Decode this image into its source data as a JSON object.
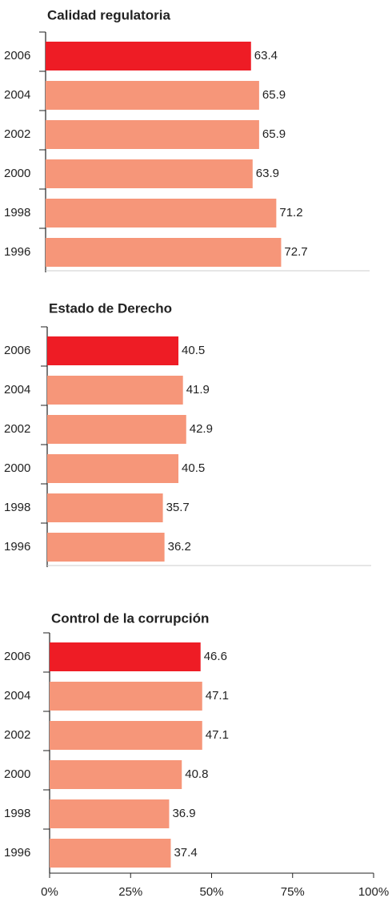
{
  "chart_data": [
    {
      "type": "bar",
      "title": "Calidad regulatoria",
      "categories": [
        "2006",
        "2004",
        "2002",
        "2000",
        "1998",
        "1996"
      ],
      "values": [
        63.4,
        65.9,
        65.9,
        63.9,
        71.2,
        72.7
      ],
      "colors": [
        "#ee1c25",
        "#f69679",
        "#f69679",
        "#f69679",
        "#f69679",
        "#f69679"
      ],
      "xlim": [
        0,
        100
      ]
    },
    {
      "type": "bar",
      "title": "Estado de Derecho",
      "categories": [
        "2006",
        "2004",
        "2002",
        "2000",
        "1998",
        "1996"
      ],
      "values": [
        40.5,
        41.9,
        42.9,
        40.5,
        35.7,
        36.2
      ],
      "colors": [
        "#ee1c25",
        "#f69679",
        "#f69679",
        "#f69679",
        "#f69679",
        "#f69679"
      ],
      "xlim": [
        0,
        100
      ]
    },
    {
      "type": "bar",
      "title": "Control de la corrupción",
      "categories": [
        "2006",
        "2004",
        "2002",
        "2000",
        "1998",
        "1996"
      ],
      "values": [
        46.6,
        47.1,
        47.1,
        40.8,
        36.9,
        37.4
      ],
      "colors": [
        "#ee1c25",
        "#f69679",
        "#f69679",
        "#f69679",
        "#f69679",
        "#f69679"
      ],
      "xlim": [
        0,
        100
      ],
      "xticks": [
        {
          "value": 0,
          "label": "0%"
        },
        {
          "value": 25,
          "label": "25%"
        },
        {
          "value": 50,
          "label": "50%"
        },
        {
          "value": 75,
          "label": "75%"
        },
        {
          "value": 100,
          "label": "100%"
        }
      ]
    }
  ]
}
